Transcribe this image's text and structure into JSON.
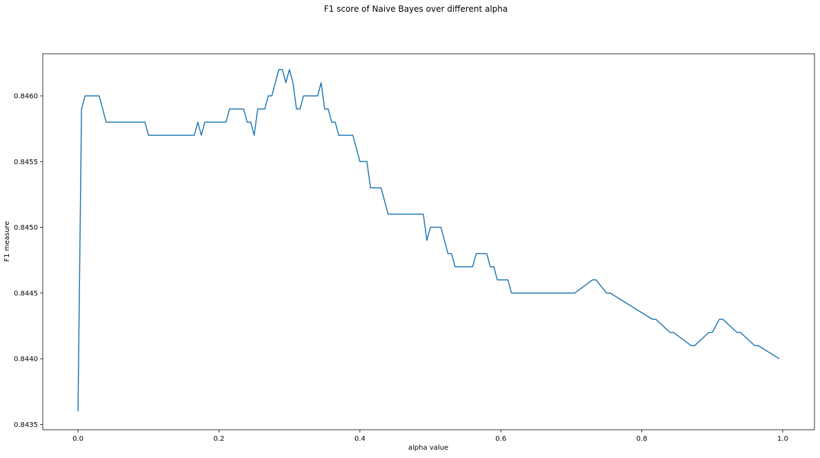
{
  "chart_data": {
    "type": "line",
    "title": "F1 score of Naive Bayes over different alpha",
    "xlabel": "alpha value",
    "ylabel": "F1 measure",
    "xlim": [
      -0.05,
      1.045
    ],
    "ylim": [
      0.84346,
      0.84632
    ],
    "xticks": [
      0.0,
      0.2,
      0.4,
      0.6,
      0.8,
      1.0
    ],
    "xtick_labels": [
      "0.0",
      "0.2",
      "0.4",
      "0.6",
      "0.8",
      "1.0"
    ],
    "yticks": [
      0.8435,
      0.844,
      0.8445,
      0.845,
      0.8455,
      0.846
    ],
    "ytick_labels": [
      "0.8435",
      "0.8440",
      "0.8445",
      "0.8450",
      "0.8455",
      "0.8460"
    ],
    "grid": false,
    "line_color": "#1f77b4",
    "series": [
      {
        "x": [
          0.0,
          0.005,
          0.01,
          0.03,
          0.04,
          0.095,
          0.1,
          0.165,
          0.17,
          0.175,
          0.18,
          0.21,
          0.215,
          0.235,
          0.24,
          0.245,
          0.25,
          0.255,
          0.26,
          0.265,
          0.27,
          0.275,
          0.28,
          0.285,
          0.29,
          0.295,
          0.3,
          0.305,
          0.31,
          0.315,
          0.32,
          0.34,
          0.345,
          0.35,
          0.355,
          0.36,
          0.365,
          0.37,
          0.39,
          0.4,
          0.41,
          0.415,
          0.43,
          0.44,
          0.49,
          0.495,
          0.5,
          0.515,
          0.525,
          0.53,
          0.535,
          0.56,
          0.565,
          0.58,
          0.585,
          0.59,
          0.595,
          0.61,
          0.615,
          0.7,
          0.705,
          0.73,
          0.735,
          0.75,
          0.755,
          0.815,
          0.82,
          0.84,
          0.845,
          0.87,
          0.875,
          0.895,
          0.9,
          0.91,
          0.915,
          0.935,
          0.94,
          0.96,
          0.965,
          0.995
        ],
        "y": [
          0.8436,
          0.8459,
          0.846,
          0.846,
          0.8458,
          0.8458,
          0.8457,
          0.8457,
          0.8458,
          0.8457,
          0.8458,
          0.8458,
          0.8459,
          0.8459,
          0.8458,
          0.8458,
          0.8457,
          0.8459,
          0.8459,
          0.8459,
          0.846,
          0.846,
          0.8461,
          0.8462,
          0.8462,
          0.8461,
          0.8462,
          0.8461,
          0.8459,
          0.8459,
          0.846,
          0.846,
          0.8461,
          0.8459,
          0.8459,
          0.8458,
          0.8458,
          0.8457,
          0.8457,
          0.8455,
          0.8455,
          0.8453,
          0.8453,
          0.8451,
          0.8451,
          0.8449,
          0.845,
          0.845,
          0.8448,
          0.8448,
          0.8447,
          0.8447,
          0.8448,
          0.8448,
          0.8447,
          0.8447,
          0.8446,
          0.8446,
          0.8445,
          0.8445,
          0.8445,
          0.8446,
          0.8446,
          0.8445,
          0.8445,
          0.8443,
          0.8443,
          0.8442,
          0.8442,
          0.8441,
          0.8441,
          0.8442,
          0.8442,
          0.8443,
          0.8443,
          0.8442,
          0.8442,
          0.8441,
          0.8441,
          0.844
        ]
      }
    ]
  }
}
